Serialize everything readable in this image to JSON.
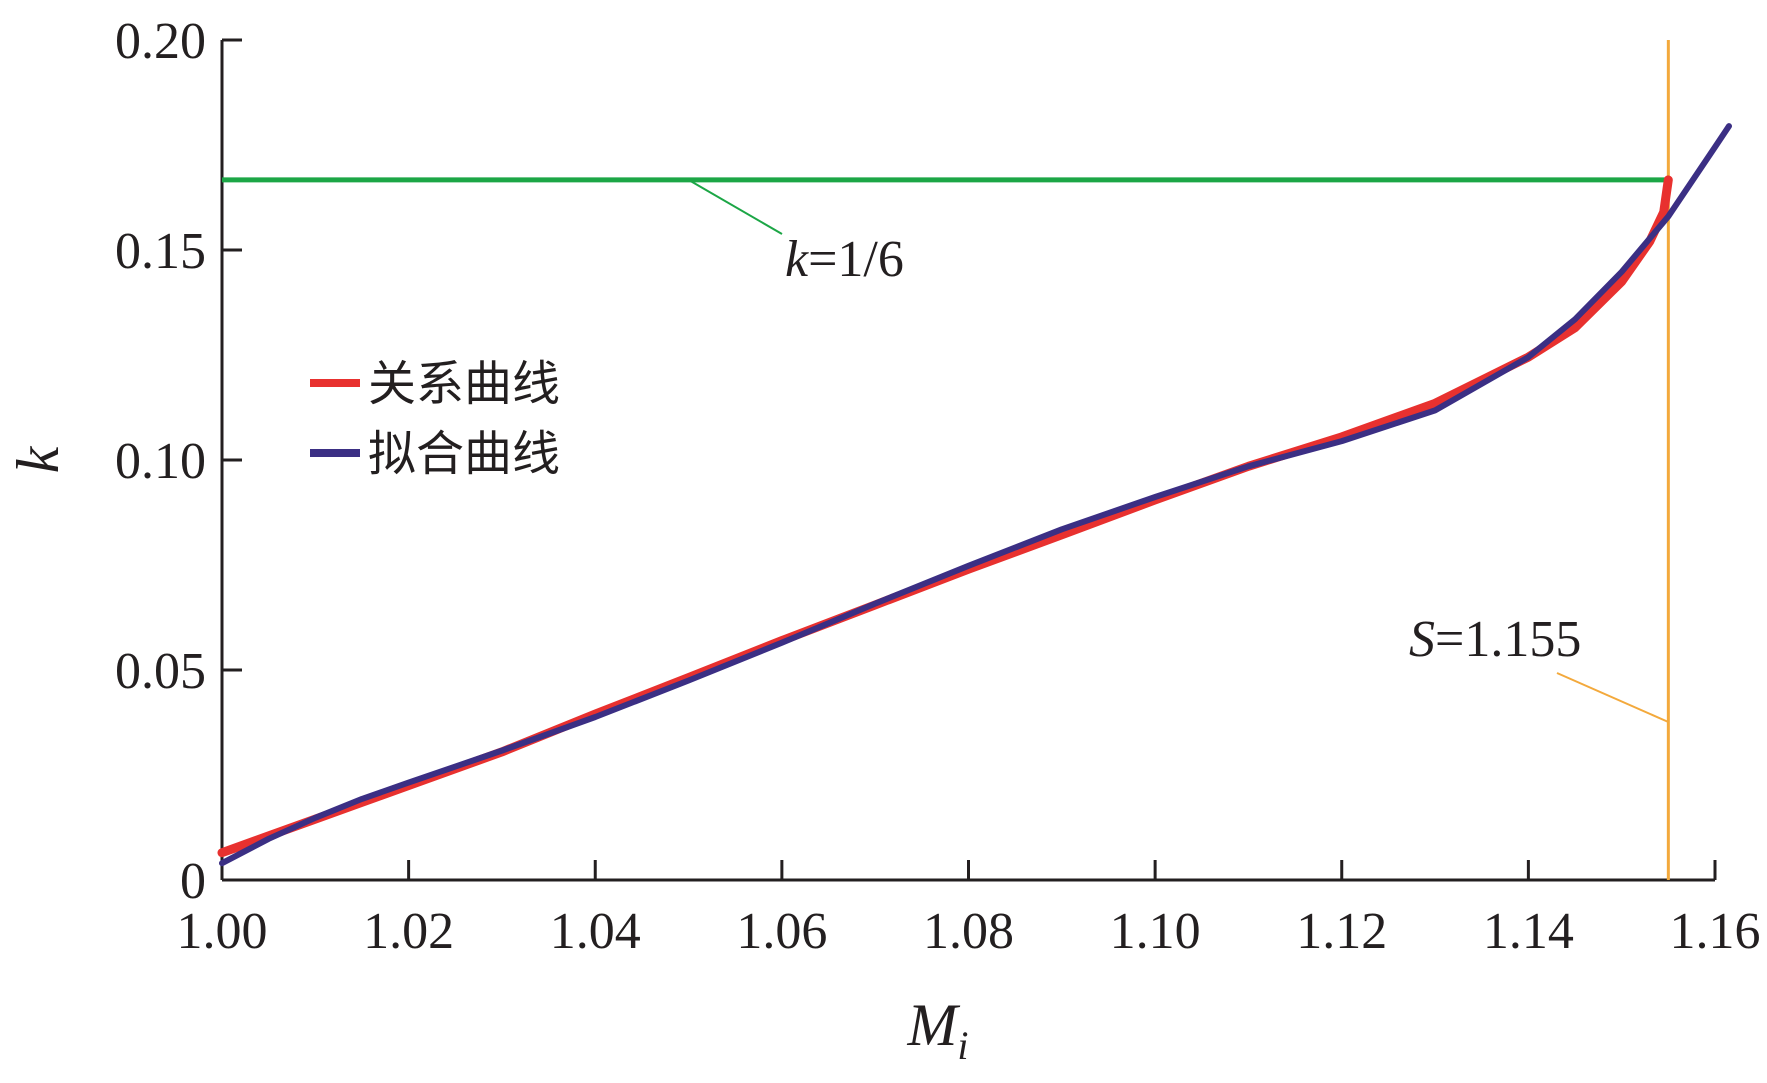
{
  "chart_data": {
    "type": "line",
    "xlabel": "M",
    "xlabel_sub": "i",
    "ylabel": "k",
    "xlim": [
      1.0,
      1.16
    ],
    "ylim": [
      0,
      0.2
    ],
    "x_ticks": [
      "1.00",
      "1.02",
      "1.04",
      "1.06",
      "1.08",
      "1.10",
      "1.12",
      "1.14",
      "1.16"
    ],
    "y_ticks": [
      "0",
      "0.05",
      "0.10",
      "0.15",
      "0.20"
    ],
    "grid": false,
    "legend_position": "center-left",
    "series": [
      {
        "name": "关系曲线",
        "color": "#e8312f",
        "points": [
          [
            1.0,
            0.0065
          ],
          [
            1.005,
            0.0105
          ],
          [
            1.01,
            0.0145
          ],
          [
            1.015,
            0.0185
          ],
          [
            1.02,
            0.0225
          ],
          [
            1.03,
            0.0305
          ],
          [
            1.04,
            0.0395
          ],
          [
            1.05,
            0.0482
          ],
          [
            1.06,
            0.057
          ],
          [
            1.07,
            0.0655
          ],
          [
            1.08,
            0.074
          ],
          [
            1.09,
            0.0822
          ],
          [
            1.1,
            0.0905
          ],
          [
            1.11,
            0.0985
          ],
          [
            1.12,
            0.1055
          ],
          [
            1.13,
            0.1135
          ],
          [
            1.14,
            0.1245
          ],
          [
            1.145,
            0.1315
          ],
          [
            1.15,
            0.1425
          ],
          [
            1.153,
            0.152
          ],
          [
            1.1545,
            0.159
          ],
          [
            1.155,
            0.1667
          ]
        ]
      },
      {
        "name": "拟合曲线",
        "color": "#3b2f84",
        "points": [
          [
            1.0,
            0.004
          ],
          [
            1.005,
            0.0098
          ],
          [
            1.01,
            0.0148
          ],
          [
            1.015,
            0.0193
          ],
          [
            1.02,
            0.0232
          ],
          [
            1.03,
            0.0308
          ],
          [
            1.04,
            0.0388
          ],
          [
            1.05,
            0.0475
          ],
          [
            1.06,
            0.0565
          ],
          [
            1.07,
            0.0658
          ],
          [
            1.08,
            0.0748
          ],
          [
            1.09,
            0.0835
          ],
          [
            1.1,
            0.0912
          ],
          [
            1.11,
            0.0985
          ],
          [
            1.12,
            0.1045
          ],
          [
            1.13,
            0.1118
          ],
          [
            1.14,
            0.1245
          ],
          [
            1.145,
            0.1335
          ],
          [
            1.15,
            0.1448
          ],
          [
            1.155,
            0.158
          ],
          [
            1.16,
            0.1745
          ],
          [
            1.1615,
            0.1795
          ]
        ]
      }
    ],
    "reference_lines": [
      {
        "type": "horizontal",
        "value": 0.1667,
        "color": "#1ca646",
        "label_var": "k",
        "label_rest": "=1/6"
      },
      {
        "type": "vertical",
        "value": 1.155,
        "color": "#f3a93c",
        "label_var": "S",
        "label_rest": "=1.155"
      }
    ]
  }
}
